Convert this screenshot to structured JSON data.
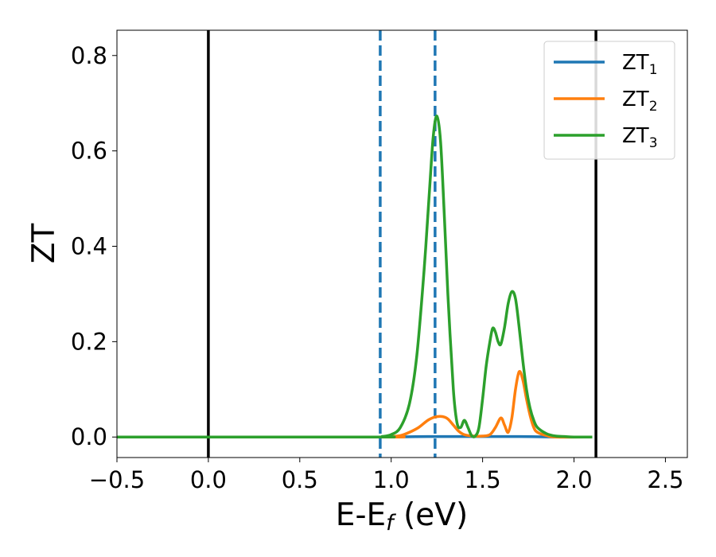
{
  "chart_data": {
    "type": "line",
    "xlabel": {
      "main": "E-E",
      "sub": "f",
      "unit": " (eV)"
    },
    "ylabel": "ZT",
    "xlim": [
      -0.5,
      2.62
    ],
    "ylim": [
      -0.043,
      0.853
    ],
    "x_ticks": [
      -0.5,
      0.0,
      0.5,
      1.0,
      1.5,
      2.0,
      2.5
    ],
    "x_tick_labels": [
      "−0.5",
      "0.0",
      "0.5",
      "1.0",
      "1.5",
      "2.0",
      "2.5"
    ],
    "y_ticks": [
      0.0,
      0.2,
      0.4,
      0.6,
      0.8
    ],
    "y_tick_labels": [
      "0.0",
      "0.2",
      "0.4",
      "0.6",
      "0.8"
    ],
    "grid": false,
    "legend_position": "top-right",
    "vertical_lines": [
      {
        "x": 0.0,
        "style": "solid",
        "color": "#000000"
      },
      {
        "x": 2.12,
        "style": "solid",
        "color": "#000000"
      },
      {
        "x": 0.94,
        "style": "dashed",
        "color": "#1f77b4"
      },
      {
        "x": 1.24,
        "style": "dashed",
        "color": "#1f77b4"
      }
    ],
    "series": [
      {
        "name": {
          "main": "ZT",
          "sub": "1"
        },
        "color": "#1f77b4",
        "x": [
          -0.5,
          0.9,
          1.0,
          1.1,
          1.2,
          1.3,
          1.4,
          1.5,
          1.6,
          1.7,
          1.8,
          1.9,
          2.0,
          2.1
        ],
        "y": [
          0.0,
          0.0,
          0.0,
          0.0005,
          0.001,
          0.001,
          0.001,
          0.001,
          0.001,
          0.001,
          0.0005,
          0.0,
          0.0,
          0.0
        ]
      },
      {
        "name": {
          "main": "ZT",
          "sub": "2"
        },
        "color": "#ff7f0e",
        "x": [
          -0.5,
          0.95,
          1.0,
          1.05,
          1.1,
          1.15,
          1.2,
          1.24,
          1.28,
          1.31,
          1.34,
          1.37,
          1.4,
          1.45,
          1.5,
          1.54,
          1.57,
          1.6,
          1.62,
          1.64,
          1.66,
          1.68,
          1.7,
          1.72,
          1.74,
          1.76,
          1.78,
          1.8,
          1.85,
          1.9,
          2.1
        ],
        "y": [
          0.0,
          0.0,
          0.001,
          0.003,
          0.01,
          0.02,
          0.035,
          0.042,
          0.043,
          0.038,
          0.025,
          0.012,
          0.005,
          0.002,
          0.002,
          0.005,
          0.02,
          0.04,
          0.025,
          0.01,
          0.04,
          0.1,
          0.137,
          0.12,
          0.08,
          0.045,
          0.02,
          0.01,
          0.003,
          0.0,
          0.0
        ]
      },
      {
        "name": {
          "main": "ZT",
          "sub": "3"
        },
        "color": "#2ca02c",
        "x": [
          -0.5,
          0.9,
          0.95,
          1.0,
          1.05,
          1.1,
          1.14,
          1.18,
          1.21,
          1.23,
          1.25,
          1.27,
          1.29,
          1.31,
          1.34,
          1.36,
          1.38,
          1.4,
          1.42,
          1.44,
          1.46,
          1.48,
          1.5,
          1.52,
          1.54,
          1.555,
          1.57,
          1.585,
          1.6,
          1.62,
          1.64,
          1.66,
          1.68,
          1.7,
          1.72,
          1.74,
          1.76,
          1.78,
          1.8,
          1.85,
          1.9,
          1.95,
          2.0,
          2.1
        ],
        "y": [
          0.0,
          0.0,
          0.001,
          0.005,
          0.02,
          0.07,
          0.17,
          0.35,
          0.52,
          0.63,
          0.673,
          0.62,
          0.47,
          0.3,
          0.1,
          0.03,
          0.02,
          0.035,
          0.02,
          0.003,
          0.002,
          0.02,
          0.08,
          0.15,
          0.2,
          0.228,
          0.22,
          0.2,
          0.195,
          0.23,
          0.28,
          0.305,
          0.29,
          0.23,
          0.16,
          0.1,
          0.06,
          0.035,
          0.02,
          0.007,
          0.002,
          0.001,
          0.0,
          0.0
        ]
      }
    ]
  }
}
